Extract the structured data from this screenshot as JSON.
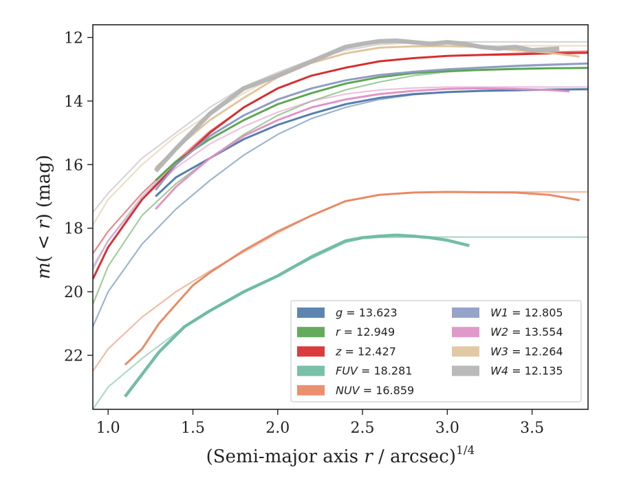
{
  "chart_data": {
    "type": "line",
    "xlabel": "(Semi-major axis r / arcsec)^1/4",
    "xlabel_parts": {
      "pre": "(Semi-major axis ",
      "var": "r",
      "post": " / arcsec)",
      "sup": "1/4"
    },
    "ylabel": "m(< r) (mag)",
    "ylabel_parts": {
      "var": "m",
      "open": "(",
      "lt": " < ",
      "var2": "r",
      "close": ")",
      "post": " (mag)"
    },
    "xlim": [
      0.91,
      3.83
    ],
    "ylim": [
      23.7,
      11.6
    ],
    "y_inverted": true,
    "xticks": [
      1.0,
      1.5,
      2.0,
      2.5,
      3.0,
      3.5
    ],
    "xtick_labels": [
      "1.0",
      "1.5",
      "2.0",
      "2.5",
      "3.0",
      "3.5"
    ],
    "yticks": [
      12,
      14,
      16,
      18,
      20,
      22
    ],
    "ytick_labels": [
      "12",
      "14",
      "16",
      "18",
      "20",
      "22"
    ],
    "grid": false,
    "legend": {
      "placement": "lower-right",
      "columns": 2
    },
    "series": [
      {
        "name": "g",
        "asymptote": 13.623,
        "label_value": "13.623",
        "color": "#4c78a8",
        "data": {
          "x": [
            1.28,
            1.4,
            1.6,
            1.8,
            2.0,
            2.2,
            2.4,
            2.6,
            2.8,
            3.0,
            3.2,
            3.4,
            3.6,
            3.83
          ],
          "y": [
            17.0,
            16.4,
            15.8,
            15.2,
            14.75,
            14.4,
            14.1,
            13.9,
            13.78,
            13.72,
            13.68,
            13.66,
            13.64,
            13.63
          ]
        },
        "model": {
          "x": [
            0.91,
            1.0,
            1.2,
            1.4,
            1.6,
            1.8,
            2.0,
            2.2,
            2.4,
            2.6,
            2.8,
            3.0,
            3.2,
            3.4,
            3.6,
            3.83
          ],
          "y": [
            21.1,
            20.0,
            18.5,
            17.4,
            16.5,
            15.7,
            15.05,
            14.55,
            14.2,
            13.95,
            13.8,
            13.72,
            13.67,
            13.65,
            13.63,
            13.62
          ]
        }
      },
      {
        "name": "r",
        "asymptote": 12.949,
        "label_value": "12.949",
        "color": "#54a24b",
        "data": {
          "x": [
            1.28,
            1.4,
            1.6,
            1.8,
            2.0,
            2.2,
            2.4,
            2.6,
            2.8,
            3.0,
            3.2,
            3.4,
            3.6,
            3.83
          ],
          "y": [
            16.5,
            15.9,
            15.2,
            14.6,
            14.1,
            13.75,
            13.45,
            13.25,
            13.12,
            13.06,
            13.02,
            12.99,
            12.97,
            12.96
          ]
        },
        "model": {
          "x": [
            0.91,
            1.0,
            1.2,
            1.4,
            1.6,
            1.8,
            2.0,
            2.2,
            2.4,
            2.6,
            2.8,
            3.0,
            3.2,
            3.4,
            3.6,
            3.83
          ],
          "y": [
            20.4,
            19.2,
            17.6,
            16.6,
            15.8,
            15.05,
            14.45,
            14.0,
            13.65,
            13.4,
            13.2,
            13.08,
            13.02,
            12.98,
            12.96,
            12.95
          ]
        }
      },
      {
        "name": "z",
        "asymptote": 12.427,
        "label_value": "12.427",
        "color": "#d62728",
        "data": {
          "x": [
            0.91,
            1.0,
            1.2,
            1.4,
            1.6,
            1.8,
            2.0,
            2.2,
            2.4,
            2.6,
            2.8,
            3.0,
            3.2,
            3.4,
            3.6,
            3.83
          ],
          "y": [
            19.6,
            18.6,
            17.1,
            16.0,
            15.0,
            14.2,
            13.6,
            13.2,
            12.95,
            12.75,
            12.65,
            12.58,
            12.55,
            12.53,
            12.5,
            12.48
          ]
        },
        "model": {
          "x": [
            0.91,
            1.0,
            1.2,
            1.4,
            1.6,
            1.8,
            2.0,
            2.2,
            2.4,
            2.6,
            2.8,
            3.0,
            3.2,
            3.4,
            3.6,
            3.83
          ],
          "y": [
            18.8,
            18.1,
            16.9,
            15.9,
            14.95,
            14.2,
            13.6,
            13.2,
            12.95,
            12.75,
            12.65,
            12.58,
            12.54,
            12.5,
            12.46,
            12.43
          ]
        }
      },
      {
        "name": "FUV",
        "asymptote": 18.281,
        "label_value": "18.281",
        "color": "#6cb9a0",
        "data": {
          "x": [
            1.1,
            1.2,
            1.3,
            1.45,
            1.6,
            1.8,
            2.0,
            2.2,
            2.4,
            2.5,
            2.6,
            2.7,
            2.8,
            2.9,
            3.0,
            3.13
          ],
          "y": [
            23.3,
            22.6,
            21.9,
            21.1,
            20.6,
            20.0,
            19.5,
            18.9,
            18.4,
            18.3,
            18.25,
            18.22,
            18.25,
            18.3,
            18.38,
            18.55
          ]
        },
        "model": {
          "x": [
            0.91,
            1.0,
            1.2,
            1.4,
            1.6,
            1.8,
            2.0,
            2.2,
            2.4,
            2.5,
            2.6,
            2.8,
            3.0,
            3.2,
            3.4,
            3.6,
            3.83
          ],
          "y": [
            23.7,
            23.0,
            22.1,
            21.3,
            20.6,
            20.0,
            19.5,
            18.95,
            18.45,
            18.32,
            18.29,
            18.28,
            18.28,
            18.28,
            18.28,
            18.28,
            18.28
          ]
        }
      },
      {
        "name": "NUV",
        "asymptote": 16.859,
        "label_value": "16.859",
        "color": "#e8845e",
        "data": {
          "x": [
            1.1,
            1.2,
            1.3,
            1.4,
            1.5,
            1.6,
            1.8,
            2.0,
            2.2,
            2.4,
            2.6,
            2.8,
            3.0,
            3.2,
            3.4,
            3.6,
            3.78
          ],
          "y": [
            22.3,
            21.8,
            21.0,
            20.4,
            19.8,
            19.4,
            18.7,
            18.1,
            17.6,
            17.15,
            16.95,
            16.88,
            16.86,
            16.87,
            16.88,
            16.95,
            17.12
          ]
        },
        "model": {
          "x": [
            0.91,
            1.0,
            1.2,
            1.4,
            1.6,
            1.8,
            2.0,
            2.2,
            2.4,
            2.6,
            2.8,
            3.0,
            3.2,
            3.4,
            3.6,
            3.83
          ],
          "y": [
            22.5,
            21.8,
            20.8,
            20.0,
            19.35,
            18.75,
            18.15,
            17.6,
            17.15,
            16.95,
            16.88,
            16.86,
            16.86,
            16.86,
            16.86,
            16.86
          ]
        }
      },
      {
        "name": "W1",
        "asymptote": 12.805,
        "label_value": "12.805",
        "color": "#8c9ac3",
        "data": {
          "x": [
            1.28,
            1.4,
            1.6,
            1.8,
            2.0,
            2.2,
            2.4,
            2.6,
            2.8,
            3.0,
            3.2,
            3.4,
            3.6,
            3.83
          ],
          "y": [
            16.8,
            16.0,
            15.1,
            14.45,
            13.95,
            13.6,
            13.35,
            13.18,
            13.08,
            13.0,
            12.95,
            12.9,
            12.86,
            12.82
          ]
        },
        "model": {
          "x": [
            0.91,
            1.0,
            1.2,
            1.4,
            1.6,
            1.8,
            2.0,
            2.2,
            2.4,
            2.6,
            2.8,
            3.0,
            3.2,
            3.4,
            3.6,
            3.83
          ],
          "y": [
            19.3,
            18.4,
            17.0,
            15.95,
            15.1,
            14.45,
            13.95,
            13.6,
            13.35,
            13.18,
            13.08,
            13.0,
            12.94,
            12.88,
            12.84,
            12.81
          ]
        }
      },
      {
        "name": "W2",
        "asymptote": 13.554,
        "label_value": "13.554",
        "color": "#dd8fc4",
        "data": {
          "x": [
            1.28,
            1.4,
            1.6,
            1.8,
            2.0,
            2.2,
            2.4,
            2.6,
            2.8,
            3.0,
            3.2,
            3.4,
            3.6,
            3.72
          ],
          "y": [
            17.4,
            16.7,
            15.8,
            15.1,
            14.6,
            14.2,
            13.95,
            13.78,
            13.68,
            13.62,
            13.6,
            13.62,
            13.65,
            13.7
          ]
        },
        "model": {
          "x": [
            0.91,
            1.0,
            1.2,
            1.4,
            1.6,
            1.8,
            2.0,
            2.2,
            2.4,
            2.6,
            2.8,
            3.0,
            3.2,
            3.4,
            3.6,
            3.83
          ],
          "y": [
            19.2,
            18.4,
            17.1,
            16.1,
            15.35,
            14.8,
            14.35,
            14.0,
            13.78,
            13.65,
            13.59,
            13.56,
            13.56,
            13.56,
            13.56,
            13.56
          ]
        }
      },
      {
        "name": "W3",
        "asymptote": 12.264,
        "label_value": "12.264",
        "color": "#dfc39a",
        "data": {
          "x": [
            1.28,
            1.4,
            1.6,
            1.8,
            2.0,
            2.2,
            2.4,
            2.6,
            2.8,
            3.0,
            3.2,
            3.4,
            3.6,
            3.78
          ],
          "y": [
            16.1,
            15.5,
            14.6,
            13.9,
            13.25,
            12.8,
            12.5,
            12.32,
            12.28,
            12.27,
            12.3,
            12.4,
            12.48,
            12.6
          ]
        },
        "model": {
          "x": [
            0.91,
            1.0,
            1.2,
            1.4,
            1.6,
            1.8,
            2.0,
            2.2,
            2.4,
            2.6,
            2.8,
            3.0,
            3.2,
            3.4,
            3.6,
            3.83
          ],
          "y": [
            17.9,
            17.1,
            16.0,
            15.1,
            14.4,
            13.75,
            13.2,
            12.8,
            12.5,
            12.33,
            12.28,
            12.27,
            12.26,
            12.26,
            12.26,
            12.26
          ]
        }
      },
      {
        "name": "W4",
        "asymptote": 12.135,
        "label_value": "12.135",
        "color": "#b3b3b3",
        "data": {
          "x": [
            1.28,
            1.4,
            1.6,
            1.8,
            2.0,
            2.2,
            2.4,
            2.5,
            2.6,
            2.7,
            2.8,
            2.9,
            3.0,
            3.1,
            3.2,
            3.3,
            3.4,
            3.5,
            3.66
          ],
          "y": [
            16.2,
            15.5,
            14.4,
            13.6,
            13.2,
            12.75,
            12.3,
            12.2,
            12.12,
            12.1,
            12.15,
            12.2,
            12.15,
            12.2,
            12.3,
            12.35,
            12.3,
            12.4,
            12.35
          ]
        },
        "model": {
          "x": [
            0.91,
            1.0,
            1.2,
            1.4,
            1.6,
            1.8,
            2.0,
            2.2,
            2.4,
            2.6,
            2.8,
            3.0,
            3.2,
            3.4,
            3.6,
            3.83
          ],
          "y": [
            17.5,
            16.9,
            15.8,
            15.0,
            14.2,
            13.55,
            13.1,
            12.7,
            12.4,
            12.22,
            12.16,
            12.14,
            12.14,
            12.14,
            12.14,
            12.14
          ]
        }
      }
    ]
  }
}
